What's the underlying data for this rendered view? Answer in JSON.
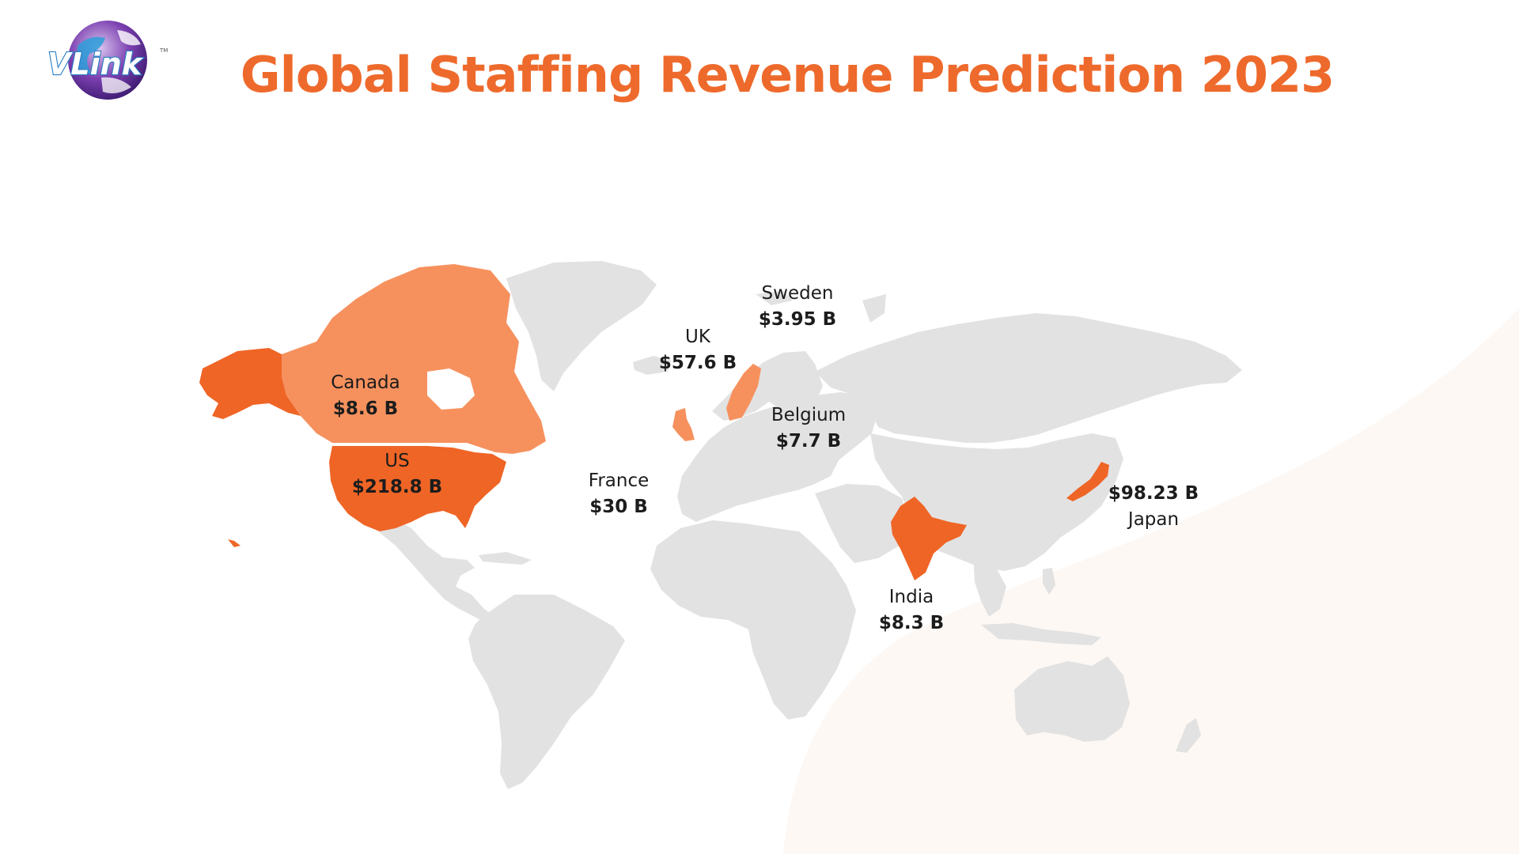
{
  "brand": {
    "logo_text": "VLink",
    "trademark": "TM"
  },
  "title": "Global Staffing Revenue Prediction 2023",
  "colors": {
    "title": "#ee6a2c",
    "highlight_dark": "#ef6526",
    "highlight_light": "#f6915e",
    "land": "#e2e2e2",
    "background_curve": "#fdf8f4",
    "text": "#1c1c1c"
  },
  "markers": [
    {
      "key": "canada",
      "country": "Canada",
      "value": "$8.6 B"
    },
    {
      "key": "us",
      "country": "US",
      "value": "$218.8 B"
    },
    {
      "key": "uk",
      "country": "UK",
      "value": "$57.6 B"
    },
    {
      "key": "sweden",
      "country": "Sweden",
      "value": "$3.95 B"
    },
    {
      "key": "belgium",
      "country": "Belgium",
      "value": "$7.7 B"
    },
    {
      "key": "france",
      "country": "France",
      "value": "$30 B"
    },
    {
      "key": "india",
      "country": "India",
      "value": "$8.3 B"
    },
    {
      "key": "japan",
      "country": "Japan",
      "value": "$98.23 B"
    }
  ]
}
